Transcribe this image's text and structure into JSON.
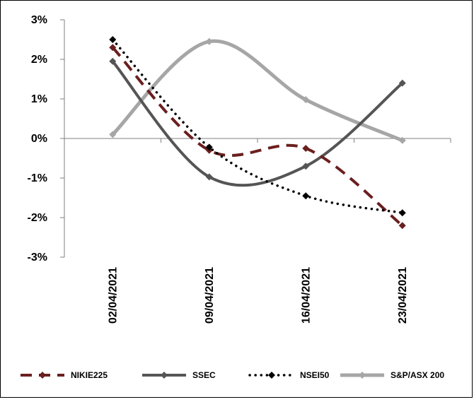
{
  "chart_data": {
    "type": "line",
    "title": "",
    "xlabel": "",
    "ylabel": "",
    "categories": [
      "02/04/2021",
      "09/04/2021",
      "16/04/2021",
      "23/04/2021"
    ],
    "y_ticks": [
      "3%",
      "2%",
      "1%",
      "0%",
      "-1%",
      "-2%",
      "-3%"
    ],
    "ylim": [
      -3,
      3
    ],
    "grid": false,
    "legend_position": "bottom",
    "series": [
      {
        "name": "NIKIE225",
        "values": [
          2.3,
          -0.3,
          -0.25,
          -2.2
        ],
        "color": "#6b1f1f",
        "style": "dashed",
        "marker": "diamond"
      },
      {
        "name": "SSEC",
        "values": [
          1.95,
          -0.97,
          -0.7,
          1.4
        ],
        "color": "#555555",
        "style": "solid",
        "marker": "diamond"
      },
      {
        "name": "NSEI50",
        "values": [
          2.5,
          -0.22,
          -1.45,
          -1.88
        ],
        "color": "#000000",
        "style": "dotted",
        "marker": "diamond"
      },
      {
        "name": "S&P/ASX 200",
        "values": [
          0.1,
          2.45,
          0.98,
          -0.05
        ],
        "color": "#a6a6a6",
        "style": "solid",
        "marker": "diamond"
      }
    ]
  }
}
